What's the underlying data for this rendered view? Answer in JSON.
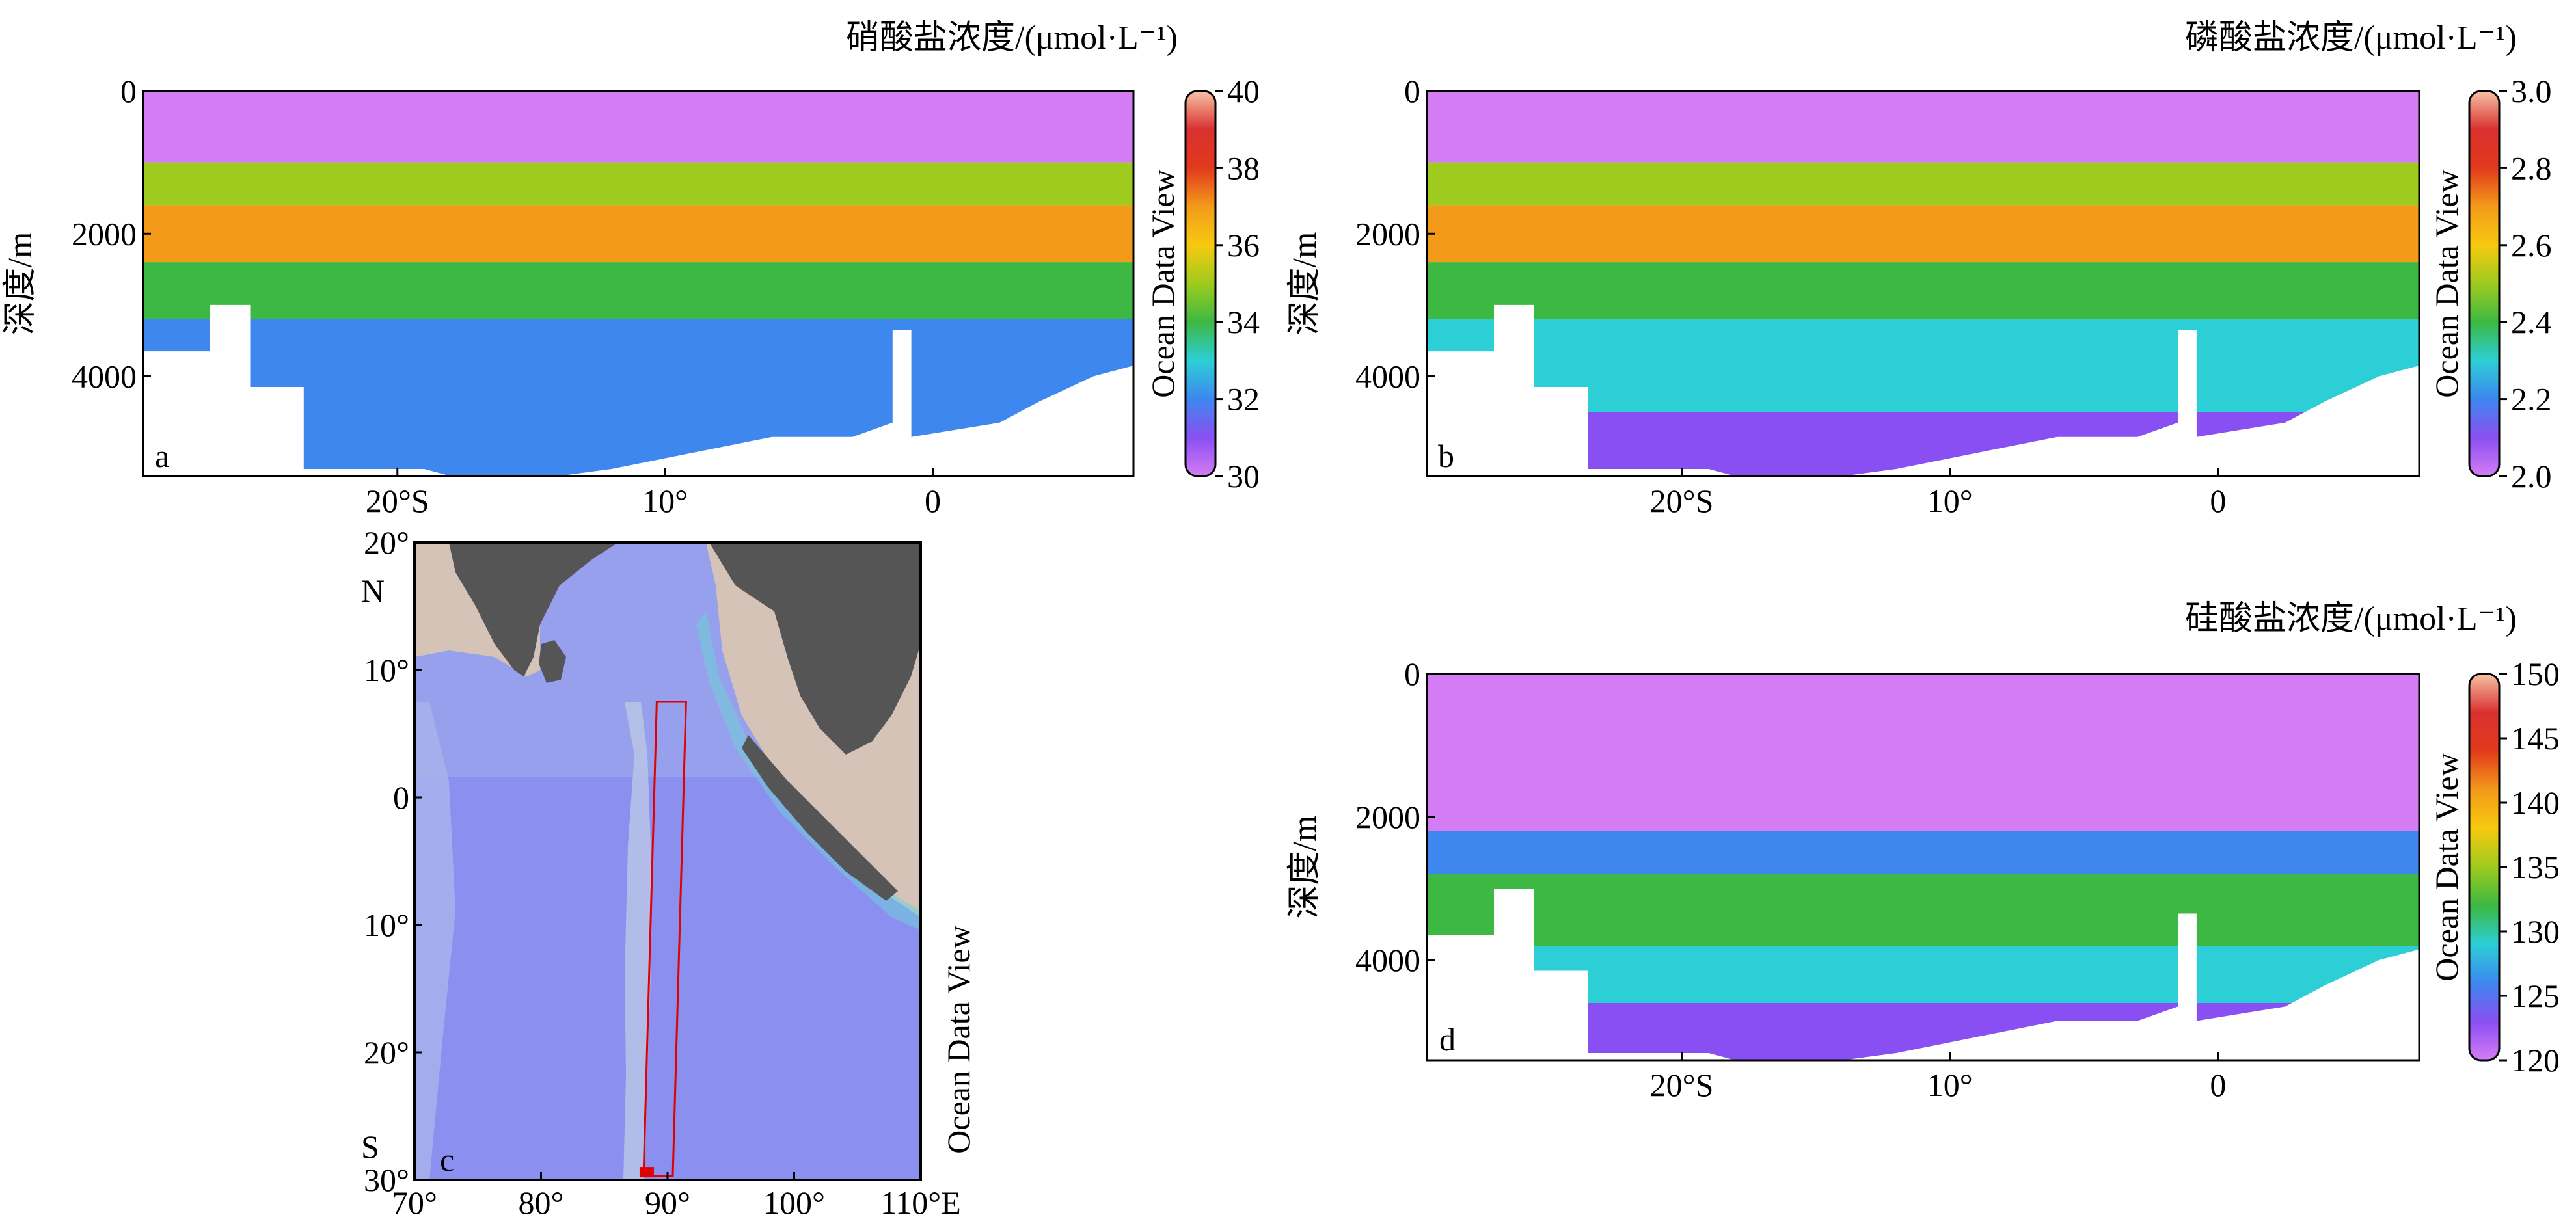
{
  "chart_data": [
    {
      "type": "heatmap",
      "panel": "a",
      "title": "硝酸盐浓度/(μmol·L⁻¹)",
      "ylabel": "深度/m",
      "colorbar_label": "Ocean Data View",
      "x_tick_labels": [
        "20°S",
        "10°",
        "0"
      ],
      "x_ticks": [
        -20,
        -10,
        0
      ],
      "xlim": [
        -29.5,
        7.5
      ],
      "y_tick_labels": [
        "0",
        "2000",
        "4000"
      ],
      "y_ticks": [
        0,
        2000,
        4000
      ],
      "ylim": [
        5400,
        0
      ],
      "colorbar_ticks": [
        30,
        32,
        34,
        36,
        38,
        40
      ],
      "colorbar_range": [
        30,
        40
      ],
      "colorbar_tick_labels": [
        "30",
        "32",
        "34",
        "36",
        "38",
        "40"
      ],
      "layers": [
        {
          "top_depth": 0,
          "value": 30
        },
        {
          "top_depth": 1000,
          "value": 35
        },
        {
          "top_depth": 1600,
          "value": 37
        },
        {
          "top_depth": 2400,
          "value": 34
        },
        {
          "top_depth": 3200,
          "value": 32
        },
        {
          "top_depth": 4500,
          "value": 31.5
        }
      ],
      "colorscale": [
        "#d47cf4",
        "#8a4ff2",
        "#3d87ef",
        "#2ccfd6",
        "#3db843",
        "#9ecb1e",
        "#f7c910",
        "#f39a1a",
        "#e23a1c",
        "#d9302f",
        "#f6c2a6"
      ]
    },
    {
      "type": "heatmap",
      "panel": "b",
      "title": "磷酸盐浓度/(μmol·L⁻¹)",
      "ylabel": "深度/m",
      "colorbar_label": "Ocean Data View",
      "x_tick_labels": [
        "20°S",
        "10°",
        "0"
      ],
      "x_ticks": [
        -20,
        -10,
        0
      ],
      "xlim": [
        -29.5,
        7.5
      ],
      "y_tick_labels": [
        "0",
        "2000",
        "4000"
      ],
      "y_ticks": [
        0,
        2000,
        4000
      ],
      "ylim": [
        5400,
        0
      ],
      "colorbar_ticks": [
        2.0,
        2.2,
        2.4,
        2.6,
        2.8,
        3.0
      ],
      "colorbar_range": [
        2.0,
        3.0
      ],
      "colorbar_tick_labels": [
        "2.0",
        "2.2",
        "2.4",
        "2.6",
        "2.8",
        "3.0"
      ],
      "layers": [
        {
          "top_depth": 0,
          "value": 2.0
        },
        {
          "top_depth": 1000,
          "value": 2.5
        },
        {
          "top_depth": 1600,
          "value": 2.7
        },
        {
          "top_depth": 2400,
          "value": 2.4
        },
        {
          "top_depth": 3200,
          "value": 2.25
        },
        {
          "top_depth": 4500,
          "value": 2.15
        }
      ],
      "colorscale": [
        "#d47cf4",
        "#8a4ff2",
        "#3d87ef",
        "#2ccfd6",
        "#3db843",
        "#9ecb1e",
        "#f7c910",
        "#f39a1a",
        "#e23a1c",
        "#d9302f",
        "#f6c2a6"
      ]
    },
    {
      "type": "heatmap",
      "panel": "d",
      "title": "硅酸盐浓度/(μmol·L⁻¹)",
      "ylabel": "深度/m",
      "colorbar_label": "Ocean Data View",
      "x_tick_labels": [
        "20°S",
        "10°",
        "0"
      ],
      "x_ticks": [
        -20,
        -10,
        0
      ],
      "xlim": [
        -29.5,
        7.5
      ],
      "y_tick_labels": [
        "0",
        "2000",
        "4000"
      ],
      "y_ticks": [
        0,
        2000,
        4000
      ],
      "ylim": [
        5400,
        0
      ],
      "colorbar_ticks": [
        120,
        125,
        130,
        135,
        140,
        145,
        150
      ],
      "colorbar_range": [
        120,
        150
      ],
      "colorbar_tick_labels": [
        "120",
        "125",
        "130",
        "135",
        "140",
        "145",
        "150"
      ],
      "layers": [
        {
          "top_depth": 0,
          "value": 120
        },
        {
          "top_depth": 2200,
          "value": 126
        },
        {
          "top_depth": 2800,
          "value": 132
        },
        {
          "top_depth": 3800,
          "value": 128
        },
        {
          "top_depth": 4600,
          "value": 124
        }
      ],
      "colorscale": [
        "#d47cf4",
        "#8a4ff2",
        "#3d87ef",
        "#2ccfd6",
        "#3db843",
        "#9ecb1e",
        "#f7c910",
        "#f39a1a",
        "#e23a1c",
        "#d9302f",
        "#f6c2a6"
      ]
    }
  ],
  "map": {
    "panel": "c",
    "colorbar_label": "Ocean Data View",
    "x_tick_labels": [
      "70°",
      "80°",
      "90°",
      "100°",
      "110°E"
    ],
    "x_ticks": [
      70,
      80,
      90,
      100,
      110
    ],
    "xlim": [
      70,
      110
    ],
    "y_tick_labels": [
      "20°",
      "10°",
      "0",
      "10°",
      "20°",
      "30°"
    ],
    "y_ticks": [
      20,
      10,
      0,
      -10,
      -20,
      -30
    ],
    "ylim": [
      -30,
      20
    ],
    "hemisphere_labels": [
      "N",
      "S"
    ],
    "transect": {
      "start_lon": 88.3,
      "end_lon": 90.2,
      "start_lat": -29.7,
      "end_lat": 7.5
    },
    "colors": {
      "land": "#555555",
      "shelf": "#d6c3b8",
      "ocean": "#8b8ff0",
      "ridge": "#b8c4e8",
      "transect": "#e00000"
    }
  }
}
